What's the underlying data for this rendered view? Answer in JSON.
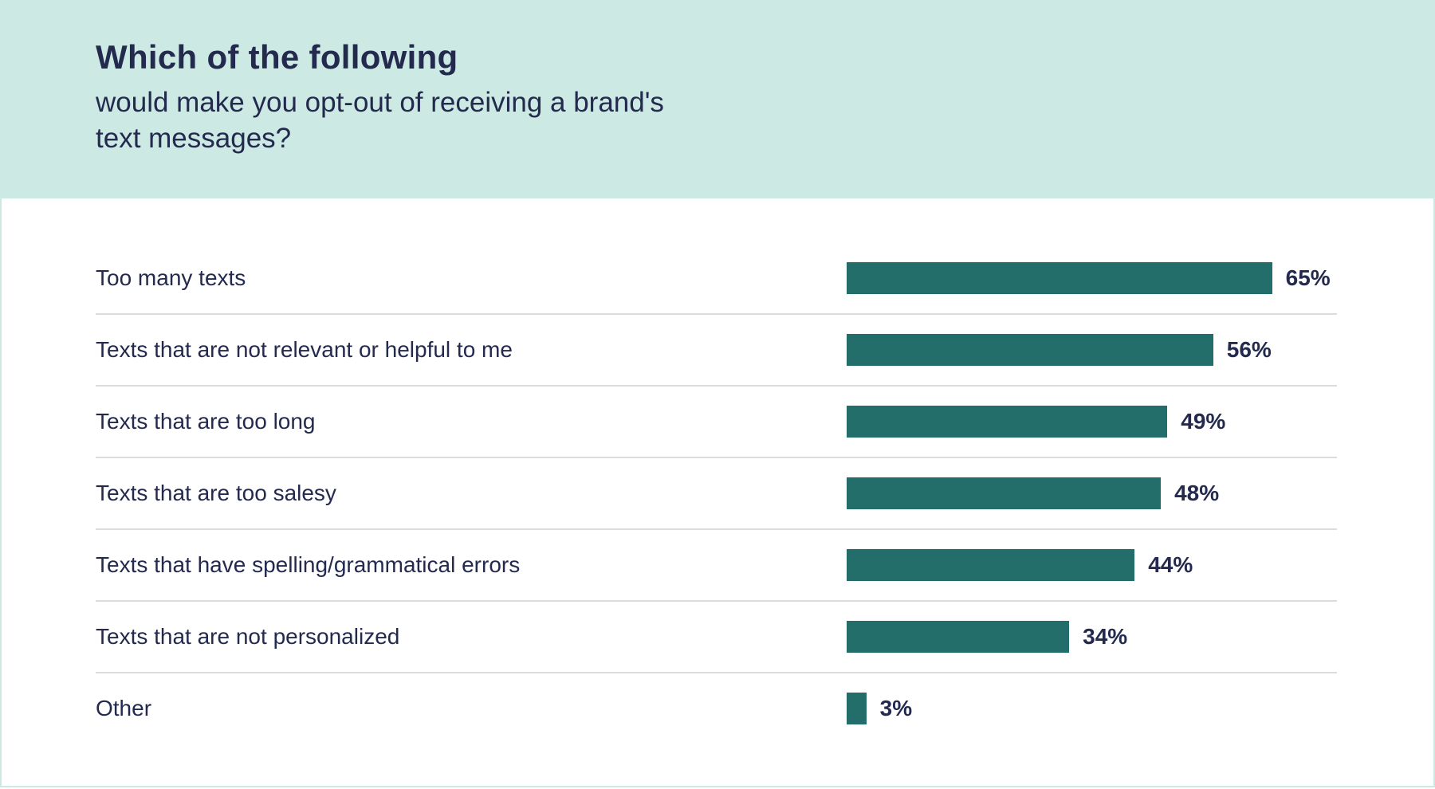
{
  "header": {
    "title": "Which of the following",
    "subtitle": "would make you opt-out of receiving a brand's text messages?"
  },
  "colors": {
    "header_bg": "#cce9e4",
    "bar": "#236d6a",
    "text": "#232a4e"
  },
  "chart_data": {
    "type": "bar",
    "orientation": "horizontal",
    "title": "Which of the following would make you opt-out of receiving a brand's text messages?",
    "categories": [
      "Too many texts",
      "Texts that are not relevant or helpful to me",
      "Texts that are too long",
      "Texts that are too salesy",
      "Texts that have spelling/grammatical errors",
      "Texts that are not personalized",
      "Other"
    ],
    "values": [
      65,
      56,
      49,
      48,
      44,
      34,
      3
    ],
    "labels": [
      "65%",
      "56%",
      "49%",
      "48%",
      "44%",
      "34%",
      "3%"
    ],
    "xlim": [
      0,
      100
    ],
    "grid": false
  }
}
